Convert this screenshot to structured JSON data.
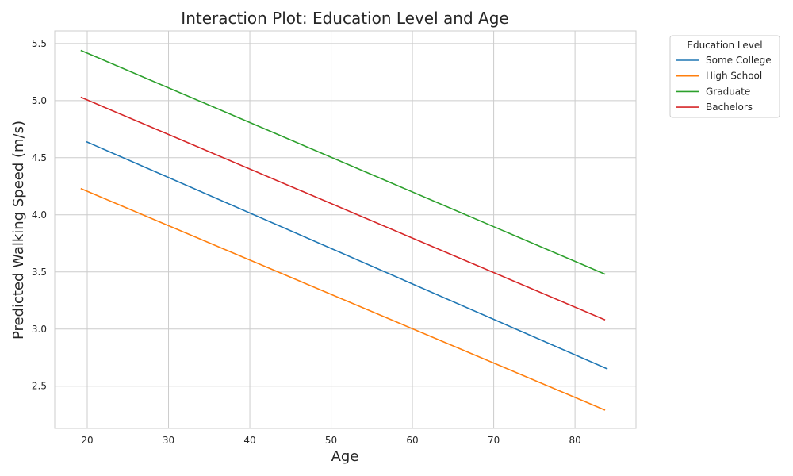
{
  "chart_data": {
    "type": "line",
    "title": "Interaction Plot: Education Level and Age",
    "xlabel": "Age",
    "ylabel": "Predicted Walking Speed (m/s)",
    "xlim": [
      16,
      87.5
    ],
    "ylim": [
      2.13,
      5.61
    ],
    "xticks": [
      20,
      30,
      40,
      50,
      60,
      70,
      80
    ],
    "yticks": [
      2.5,
      3.0,
      3.5,
      4.0,
      4.5,
      5.0,
      5.5
    ],
    "xtick_labels": [
      "20",
      "30",
      "40",
      "50",
      "60",
      "70",
      "80"
    ],
    "ytick_labels": [
      "2.5",
      "3.0",
      "3.5",
      "4.0",
      "4.5",
      "5.0",
      "5.5"
    ],
    "grid": true,
    "legend": {
      "title": "Education Level",
      "placement": "outside-top-right"
    },
    "series": [
      {
        "name": "Some College",
        "color": "#1f77b4",
        "x": [
          19.9,
          84
        ],
        "y": [
          4.64,
          2.65
        ]
      },
      {
        "name": "High School",
        "color": "#ff7f0e",
        "x": [
          19.2,
          83.7
        ],
        "y": [
          4.23,
          2.29
        ]
      },
      {
        "name": "Graduate",
        "color": "#2ca02c",
        "x": [
          19.2,
          83.7
        ],
        "y": [
          5.44,
          3.48
        ]
      },
      {
        "name": "Bachelors",
        "color": "#d62728",
        "x": [
          19.2,
          83.7
        ],
        "y": [
          5.03,
          3.08
        ]
      }
    ]
  }
}
